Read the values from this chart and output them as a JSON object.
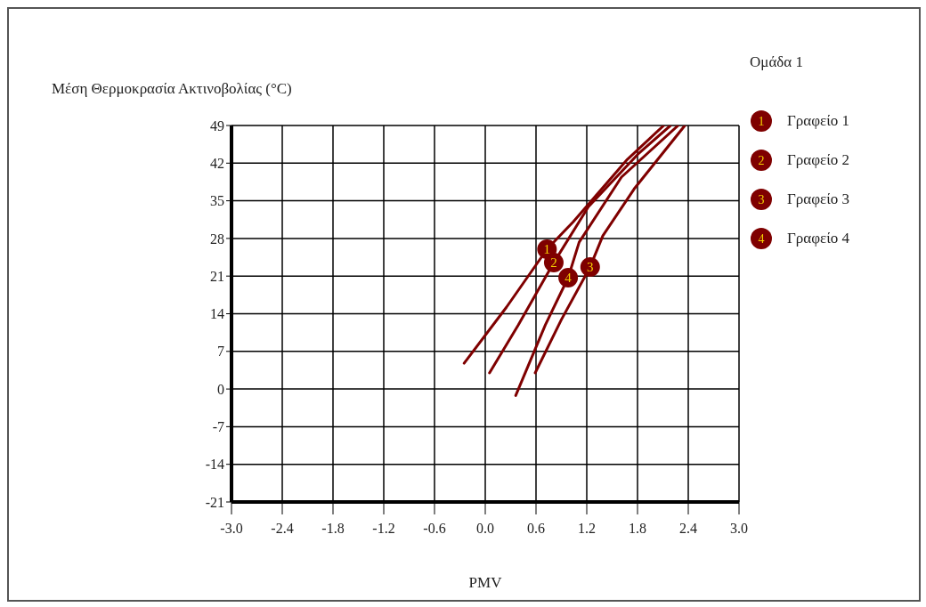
{
  "chart_data": {
    "type": "line",
    "xlabel": "PMV",
    "ylabel": "Μέση Θερμοκρασία Ακτινοβολίας (°C)",
    "legend_title": "Ομάδα 1",
    "xlim": [
      -3,
      3
    ],
    "xticks": [
      {
        "value": -3,
        "label": "-3.0"
      },
      {
        "value": -2.4,
        "label": "-2.4"
      },
      {
        "value": -1.8,
        "label": "-1.8"
      },
      {
        "value": -1.2,
        "label": "-1.2"
      },
      {
        "value": -0.6,
        "label": "-0.6"
      },
      {
        "value": 0,
        "label": "0.0"
      },
      {
        "value": 0.6,
        "label": "0.6"
      },
      {
        "value": 1.2,
        "label": "1.2"
      },
      {
        "value": 1.8,
        "label": "1.8"
      },
      {
        "value": 2.4,
        "label": "2.4"
      },
      {
        "value": 3,
        "label": "3.0"
      }
    ],
    "ylim": [
      -21,
      49
    ],
    "yticks": [
      -21,
      -14,
      -7,
      0,
      7,
      14,
      21,
      28,
      35,
      42,
      49
    ],
    "grid": true,
    "legend": "top right",
    "annotations": [
      {
        "text": "1",
        "x": 0.73,
        "y": 26
      },
      {
        "text": "2",
        "x": 0.81,
        "y": 23.5
      },
      {
        "text": "3",
        "x": 1.24,
        "y": 22.7
      },
      {
        "text": "4",
        "x": 0.98,
        "y": 20.7
      }
    ],
    "series": [
      {
        "name": "Γραφείο 1",
        "color": "#7f0000",
        "x": [
          -0.25,
          0.25,
          0.73,
          1.04,
          1.68,
          2.11
        ],
        "values": [
          4.8,
          15.2,
          26,
          31.1,
          42.7,
          49
        ]
      },
      {
        "name": "Γραφείο 2",
        "color": "#7f0000",
        "x": [
          0.05,
          0.39,
          0.81,
          1.22,
          1.82,
          2.19
        ],
        "values": [
          3,
          11.9,
          23.5,
          33.9,
          43.9,
          49
        ]
      },
      {
        "name": "Γραφείο 3",
        "color": "#7f0000",
        "x": [
          0.59,
          0.9,
          1.24,
          1.39,
          1.76,
          2.36
        ],
        "values": [
          3,
          12.9,
          22.7,
          28.5,
          37.2,
          49
        ]
      },
      {
        "name": "Γραφείο 4",
        "color": "#7f0000",
        "x": [
          0.36,
          0.71,
          0.98,
          1.11,
          1.61,
          2.28
        ],
        "values": [
          -1.2,
          11.9,
          20.7,
          27.3,
          39.4,
          49
        ]
      }
    ]
  }
}
